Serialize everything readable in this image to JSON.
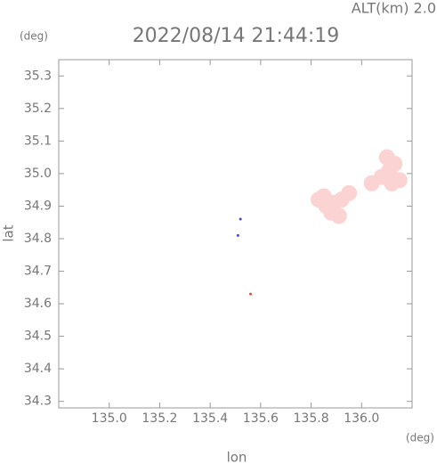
{
  "chart_data": {
    "type": "scatter",
    "title": "2022/08/14 21:44:19",
    "annotation": "ALT(km)  2.0",
    "x_unit": "(deg)",
    "y_unit": "(deg)",
    "xlabel": "lon",
    "ylabel": "lat",
    "xlim": [
      134.8,
      136.2
    ],
    "ylim": [
      34.28,
      35.35
    ],
    "xticks": [
      {
        "value": 135.0,
        "label": "135.0"
      },
      135.2,
      135.4,
      135.6,
      135.8,
      {
        "value": 136.0,
        "label": "136.0"
      }
    ],
    "yticks": [
      34.3,
      34.4,
      34.5,
      34.6,
      34.7,
      34.8,
      34.9,
      {
        "value": 35.0,
        "label": "35.0"
      },
      35.1,
      35.2,
      35.3
    ],
    "series": [
      {
        "color": "#fcd3d3",
        "x": [
          135.83,
          135.86,
          135.89,
          135.92,
          135.95,
          135.88,
          135.91,
          135.85,
          136.04,
          136.08,
          136.11,
          136.13,
          136.15,
          136.1,
          136.12
        ],
        "y": [
          34.92,
          34.9,
          34.91,
          34.92,
          34.94,
          34.88,
          34.87,
          34.93,
          34.97,
          34.99,
          35.01,
          35.03,
          34.98,
          35.05,
          34.97
        ]
      },
      {
        "color": "#4a4ad0",
        "x": [
          135.52,
          135.51
        ],
        "y": [
          34.86,
          34.81
        ]
      },
      {
        "color": "#e05040",
        "x": [
          135.56
        ],
        "y": [
          34.63
        ]
      }
    ]
  }
}
